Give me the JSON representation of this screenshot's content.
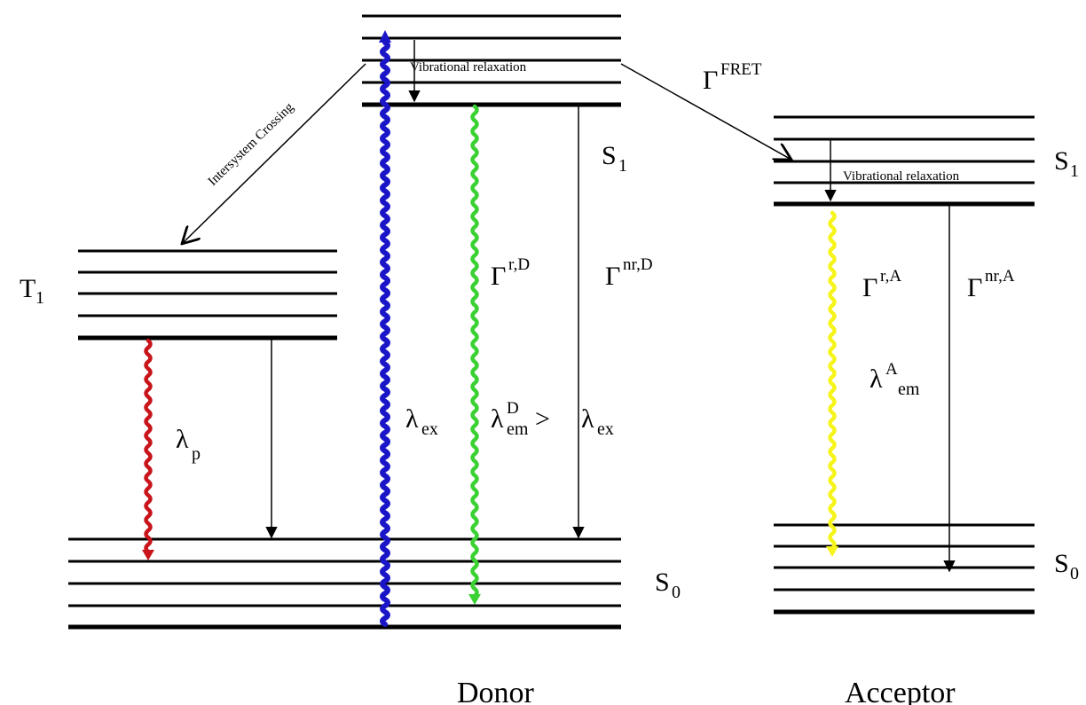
{
  "labels": {
    "donor": "Donor",
    "acceptor": "Acceptor",
    "t1": {
      "base": "T",
      "sub": "1"
    },
    "s1_donor": {
      "base": "S",
      "sub": "1"
    },
    "s0_donor": {
      "base": "S",
      "sub": "0"
    },
    "s1_acceptor": {
      "base": "S",
      "sub": "1"
    },
    "s0_acceptor": {
      "base": "S",
      "sub": "0"
    },
    "intersystem_crossing": "Intersystem Crossing",
    "vibrational_relaxation_donor": "Vibrational relaxation",
    "vibrational_relaxation_acceptor": "Vibrational relaxation",
    "gamma_fret": {
      "base": "Γ",
      "sup": "FRET"
    },
    "gamma_rD": {
      "base": "Γ",
      "sup": "r,D"
    },
    "gamma_nrD": {
      "base": "Γ",
      "sup": "nr,D"
    },
    "gamma_rA": {
      "base": "Γ",
      "sup": "r,A"
    },
    "gamma_nrA": {
      "base": "Γ",
      "sup": "nr,A"
    },
    "lambda_p": {
      "base": "λ",
      "sub": "p"
    },
    "lambda_ex": {
      "base": "λ",
      "sub": "ex"
    },
    "lambda_em_D": {
      "base": "λ",
      "sup": "D",
      "sub": "em",
      "rel": ">",
      "base2": "λ",
      "sub2": "ex"
    },
    "lambda_em_A": {
      "base": "λ",
      "sup": "A",
      "sub": "em"
    }
  },
  "colors": {
    "excitation": "#1a16c8",
    "phosphorescence": "#c8141a",
    "donor_emission": "#3ad132",
    "acceptor_emission": "#f6f41a",
    "lines": "#000000"
  }
}
